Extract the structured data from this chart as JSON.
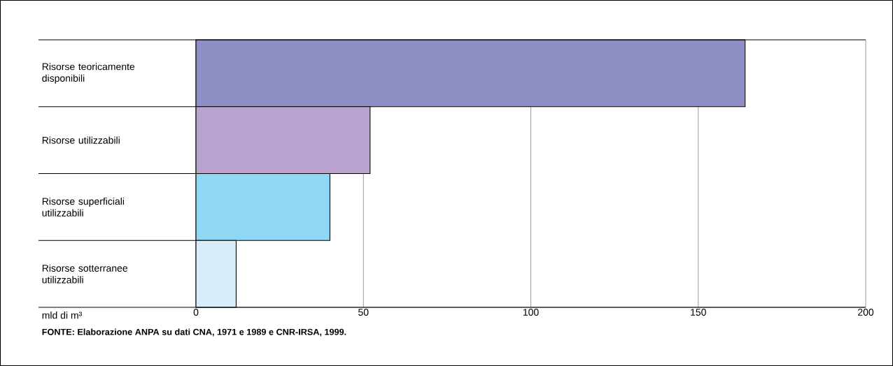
{
  "chart_data": {
    "type": "bar",
    "orientation": "horizontal",
    "categories": [
      "Risorse teoricamente disponibili",
      "Risorse utilizzabili",
      "Risorse superficiali utilizzabili",
      "Risorse sotterranee utilizzabili"
    ],
    "values": [
      164,
      52,
      40,
      12
    ],
    "colors": [
      "#8f8fc6",
      "#bba3cf",
      "#8ed8f5",
      "#d5eefa"
    ],
    "xlabel": "mld di m³",
    "xlim": [
      0,
      200
    ],
    "xticks": [
      0,
      50,
      100,
      150,
      200
    ],
    "grid": "x",
    "annotations": [
      "FONTE: Elaborazione ANPA su dati CNA, 1971 e 1989 e CNR-IRSA, 1999."
    ]
  }
}
